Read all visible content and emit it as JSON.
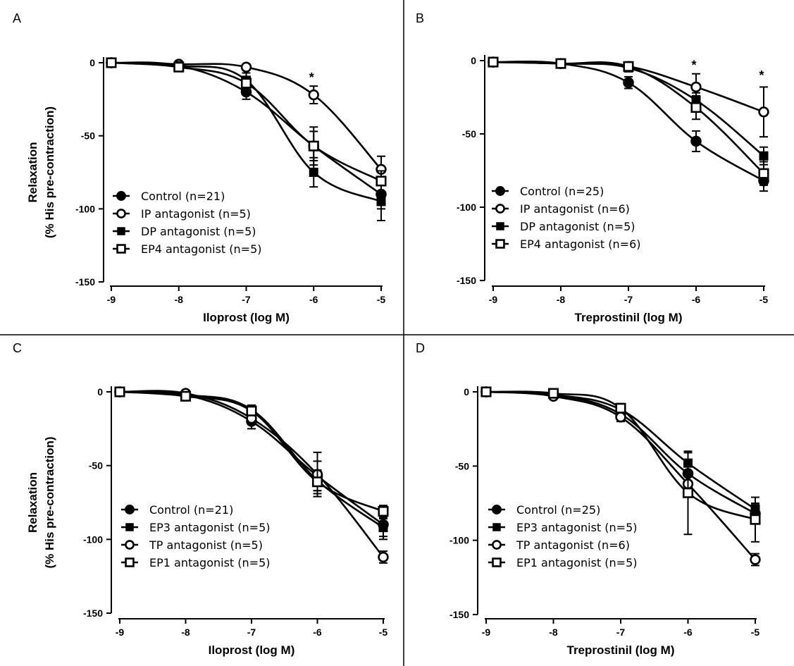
{
  "chart_data": [
    {
      "panel": "A",
      "type": "line",
      "xlabel": "Iloprost (log M)",
      "ylabel_line1": "Relaxation",
      "ylabel_line2": "(% His pre-contraction)",
      "xlim": [
        -9,
        -5
      ],
      "ylim": [
        -150,
        0
      ],
      "xticks": [
        -9,
        -8,
        -7,
        -6,
        -5
      ],
      "yticks": [
        0,
        -50,
        -100,
        -150
      ],
      "x": [
        -9,
        -8,
        -7,
        -6,
        -5
      ],
      "series": [
        {
          "name": "Control (n=21)",
          "marker": "filled-circle",
          "values": [
            0,
            -2,
            -20,
            -57,
            -90
          ],
          "errors": [
            0,
            1,
            5,
            10,
            10
          ]
        },
        {
          "name": "IP antagonist (n=5)",
          "marker": "open-circle",
          "values": [
            0,
            -1,
            -3,
            -22,
            -73
          ],
          "errors": [
            0,
            1,
            2,
            6,
            9
          ]
        },
        {
          "name": "DP antagonist (n=5)",
          "marker": "filled-square",
          "values": [
            0,
            -2,
            -12,
            -75,
            -95
          ],
          "errors": [
            0,
            1,
            5,
            10,
            13
          ]
        },
        {
          "name": "EP4 antagonist (n=5)",
          "marker": "open-square",
          "values": [
            0,
            -3,
            -14,
            -57,
            -81
          ],
          "errors": [
            0,
            1,
            4,
            13,
            7
          ]
        }
      ],
      "annotations": [
        {
          "text": "*",
          "x": -6,
          "y": -13
        }
      ]
    },
    {
      "panel": "B",
      "type": "line",
      "xlabel": "Treprostinil (log M)",
      "ylabel_line1": "",
      "ylabel_line2": "",
      "xlim": [
        -9,
        -5
      ],
      "ylim": [
        -150,
        0
      ],
      "xticks": [
        -9,
        -8,
        -7,
        -6,
        -5
      ],
      "yticks": [
        0,
        -50,
        -100,
        -150
      ],
      "x": [
        -9,
        -8,
        -7,
        -6,
        -5
      ],
      "series": [
        {
          "name": "Control (n=25)",
          "marker": "filled-circle",
          "values": [
            -1,
            -2,
            -15,
            -55,
            -82
          ],
          "errors": [
            0,
            1,
            4,
            7,
            7
          ]
        },
        {
          "name": "IP antagonist (n=6)",
          "marker": "open-circle",
          "values": [
            -1,
            -2,
            -4,
            -18,
            -35
          ],
          "errors": [
            0,
            1,
            2,
            9,
            17
          ]
        },
        {
          "name": "DP antagonist (n=5)",
          "marker": "filled-square",
          "values": [
            -1,
            -2,
            -5,
            -27,
            -65
          ],
          "errors": [
            0,
            1,
            2,
            5,
            6
          ]
        },
        {
          "name": "EP4 antagonist (n=6)",
          "marker": "open-square",
          "values": [
            -1,
            -2,
            -4,
            -32,
            -77
          ],
          "errors": [
            0,
            1,
            2,
            8,
            8
          ]
        }
      ],
      "annotations": [
        {
          "text": "*",
          "x": -6,
          "y": -6
        },
        {
          "text": "*",
          "x": -5,
          "y": -13
        }
      ]
    },
    {
      "panel": "C",
      "type": "line",
      "xlabel": "Iloprost (log M)",
      "ylabel_line1": "Relaxation",
      "ylabel_line2": "(% His pre-contraction)",
      "xlim": [
        -9,
        -5
      ],
      "ylim": [
        -150,
        0
      ],
      "xticks": [
        -9,
        -8,
        -7,
        -6,
        -5
      ],
      "yticks": [
        0,
        -50,
        -100,
        -150
      ],
      "x": [
        -9,
        -8,
        -7,
        -6,
        -5
      ],
      "series": [
        {
          "name": "Control (n=21)",
          "marker": "filled-circle",
          "values": [
            0,
            -2,
            -20,
            -57,
            -90
          ],
          "errors": [
            0,
            1,
            5,
            10,
            10
          ]
        },
        {
          "name": "EP3 antagonist (n=5)",
          "marker": "filled-square",
          "values": [
            0,
            -2,
            -12,
            -60,
            -92
          ],
          "errors": [
            0,
            1,
            3,
            7,
            6
          ]
        },
        {
          "name": "TP antagonist (n=5)",
          "marker": "open-circle",
          "values": [
            0,
            -1,
            -18,
            -56,
            -112
          ],
          "errors": [
            0,
            1,
            4,
            15,
            4
          ]
        },
        {
          "name": "EP1 antagonist (n=5)",
          "marker": "open-square",
          "values": [
            0,
            -3,
            -13,
            -61,
            -81
          ],
          "errors": [
            0,
            1,
            3,
            8,
            4
          ]
        }
      ],
      "annotations": []
    },
    {
      "panel": "D",
      "type": "line",
      "xlabel": "Treprostinil (log M)",
      "ylabel_line1": "",
      "ylabel_line2": "",
      "xlim": [
        -9,
        -5
      ],
      "ylim": [
        -150,
        0
      ],
      "xticks": [
        -9,
        -8,
        -7,
        -6,
        -5
      ],
      "yticks": [
        0,
        -50,
        -100,
        -150
      ],
      "x": [
        -9,
        -8,
        -7,
        -6,
        -5
      ],
      "series": [
        {
          "name": "Control (n=25)",
          "marker": "filled-circle",
          "values": [
            0,
            -2,
            -15,
            -55,
            -82
          ],
          "errors": [
            0,
            1,
            3,
            7,
            6
          ]
        },
        {
          "name": "EP3 antagonist (n=5)",
          "marker": "filled-square",
          "values": [
            0,
            -2,
            -12,
            -48,
            -79
          ],
          "errors": [
            0,
            1,
            3,
            7,
            4
          ]
        },
        {
          "name": "TP antagonist (n=6)",
          "marker": "open-circle",
          "values": [
            0,
            -3,
            -17,
            -62,
            -113
          ],
          "errors": [
            0,
            1,
            3,
            8,
            4
          ]
        },
        {
          "name": "EP1 antagonist (n=5)",
          "marker": "open-square",
          "values": [
            0,
            -1,
            -11,
            -68,
            -86
          ],
          "errors": [
            0,
            1,
            3,
            28,
            15
          ]
        }
      ],
      "annotations": []
    }
  ]
}
